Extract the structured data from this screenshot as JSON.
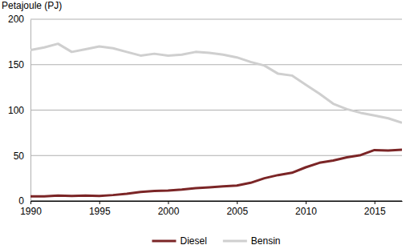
{
  "chart_data": {
    "type": "line",
    "y_label": "Petajoule (PJ)",
    "x": [
      1990,
      1991,
      1992,
      1993,
      1994,
      1995,
      1996,
      1997,
      1998,
      1999,
      2000,
      2001,
      2002,
      2003,
      2004,
      2005,
      2006,
      2007,
      2008,
      2009,
      2010,
      2011,
      2012,
      2013,
      2014,
      2015,
      2016,
      2017
    ],
    "series": [
      {
        "name": "Diesel",
        "color": "#7b2526",
        "values": [
          5,
          5,
          6,
          5.5,
          6,
          5.5,
          6.5,
          8,
          10,
          11,
          11.5,
          12.5,
          14,
          15,
          16,
          17,
          20,
          25,
          28.5,
          31,
          37,
          42,
          44.5,
          48,
          50.5,
          56,
          55.5,
          56.5
        ]
      },
      {
        "name": "Bensin",
        "color": "#cfcfcf",
        "values": [
          166,
          169,
          173,
          164,
          167,
          170,
          168,
          164,
          160,
          162,
          160,
          161,
          164,
          163,
          161,
          158,
          153,
          149,
          140,
          138,
          128,
          118,
          107,
          101,
          97,
          94,
          91,
          86
        ]
      }
    ],
    "xlim": [
      1990,
      2017
    ],
    "xticks": [
      1990,
      1995,
      2000,
      2005,
      2010,
      2015
    ],
    "ylim": [
      0,
      200
    ],
    "yticks": [
      0,
      50,
      100,
      150,
      200
    ],
    "grid": true,
    "legend": "bottom"
  }
}
